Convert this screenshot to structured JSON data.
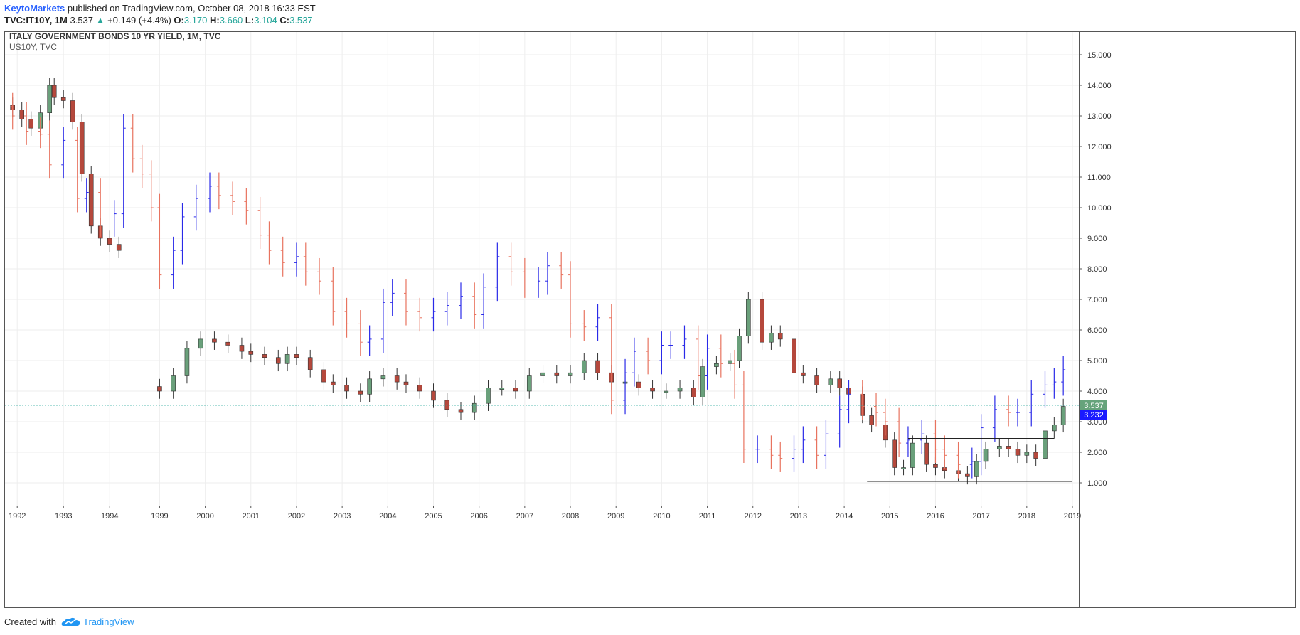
{
  "header": {
    "author": "KeytoMarkets",
    "published": "published on TradingView.com, October 08, 2018 16:33 EST",
    "symbol": "TVC:IT10Y, 1M",
    "last": "3.537",
    "change": "+0.149 (+4.4%)",
    "o_label": "O:",
    "o_value": "3.170",
    "h_label": "H:",
    "h_value": "3.660",
    "l_label": "L:",
    "l_value": "3.104",
    "c_label": "C:",
    "c_value": "3.537"
  },
  "footer": {
    "created_with": "Created with",
    "brand": "TradingView"
  },
  "chart_data": {
    "type": "line",
    "title": "ITALY GOVERNMENT BONDS 10 YR YIELD, 1M, TVC",
    "subtitle": "US10Y, TVC",
    "y_axis": {
      "ticks": [
        "15.000",
        "14.000",
        "13.000",
        "12.000",
        "11.000",
        "10.000",
        "9.000",
        "8.000",
        "7.000",
        "6.000",
        "5.000",
        "4.000",
        "3.000",
        "2.000",
        "1.000"
      ],
      "ylim": [
        0.2,
        15.4
      ],
      "position": "right"
    },
    "x_axis": {
      "ticks": [
        "1992",
        "1993",
        "1994",
        "1999",
        "2000",
        "2001",
        "2002",
        "2003",
        "2004",
        "2005",
        "2006",
        "2007",
        "2008",
        "2009",
        "2010",
        "2011",
        "2012",
        "2013",
        "2014",
        "2015",
        "2016",
        "2017",
        "2018",
        "2019"
      ]
    },
    "price_labels": [
      {
        "value": "3.232",
        "color": "#1a1aff"
      },
      {
        "value": "3.537",
        "color": "#66a37b"
      }
    ],
    "colors": {
      "up_candle": "#6aa07b",
      "down_candle": "#b5483c",
      "us10y_up": "#2a2ae8",
      "us10y_down": "#e8735f",
      "last_price_line": "#26a69a",
      "drawn_lines": "#222222"
    },
    "series": [
      {
        "name": "IT10Y",
        "style": "candles",
        "x": [
          "1991.9",
          "1992.1",
          "1992.3",
          "1992.5",
          "1992.7",
          "1992.8",
          "1993.0",
          "1993.2",
          "1993.4",
          "1993.6",
          "1993.8",
          "1994.0",
          "1994.2"
        ],
        "values": [
          13.2,
          12.9,
          12.6,
          13.1,
          14.0,
          13.6,
          13.5,
          12.8,
          11.1,
          9.4,
          9.0,
          8.8,
          8.6
        ]
      },
      {
        "name": "IT10Y",
        "style": "candles",
        "x": [
          "1999.0",
          "1999.3",
          "1999.6",
          "1999.9",
          "2000.2",
          "2000.5",
          "2000.8",
          "2001.0",
          "2001.3",
          "2001.6",
          "2001.8",
          "2002.0",
          "2002.3",
          "2002.6",
          "2002.8",
          "2003.1",
          "2003.4",
          "2003.6",
          "2003.9",
          "2004.2",
          "2004.4",
          "2004.7",
          "2005.0",
          "2005.3",
          "2005.6",
          "2005.9",
          "2006.2",
          "2006.5",
          "2006.8",
          "2007.1",
          "2007.4",
          "2007.7",
          "2008.0",
          "2008.3",
          "2008.6",
          "2008.9",
          "2009.2",
          "2009.5",
          "2009.8",
          "2010.1",
          "2010.4",
          "2010.7",
          "2010.9",
          "2011.2",
          "2011.5",
          "2011.7",
          "2011.9",
          "2012.2",
          "2012.4",
          "2012.6",
          "2012.9",
          "2013.1",
          "2013.4",
          "2013.7",
          "2013.9",
          "2014.1",
          "2014.4",
          "2014.6",
          "2014.9",
          "2015.1",
          "2015.3",
          "2015.5",
          "2015.8",
          "2016.0",
          "2016.2",
          "2016.5",
          "2016.7",
          "2016.9",
          "2017.1",
          "2017.4",
          "2017.6",
          "2017.8",
          "2018.0",
          "2018.2",
          "2018.4",
          "2018.6",
          "2018.8"
        ],
        "values": [
          4.0,
          4.5,
          5.4,
          5.7,
          5.6,
          5.5,
          5.3,
          5.2,
          5.1,
          4.9,
          5.2,
          5.1,
          4.7,
          4.3,
          4.2,
          4.0,
          3.9,
          4.4,
          4.5,
          4.3,
          4.2,
          4.0,
          3.7,
          3.4,
          3.3,
          3.6,
          4.1,
          4.1,
          4.0,
          4.5,
          4.6,
          4.5,
          4.6,
          5.0,
          4.6,
          4.3,
          4.3,
          4.1,
          4.0,
          4.0,
          4.1,
          3.8,
          4.8,
          4.9,
          5.0,
          5.8,
          7.0,
          5.6,
          5.9,
          5.7,
          4.6,
          4.5,
          4.2,
          4.4,
          4.1,
          3.9,
          3.2,
          2.9,
          2.4,
          1.5,
          1.5,
          2.3,
          1.6,
          1.5,
          1.4,
          1.3,
          1.2,
          1.7,
          2.1,
          2.2,
          2.1,
          1.9,
          2.0,
          1.8,
          2.7,
          2.9,
          3.5
        ]
      },
      {
        "name": "US10Y",
        "style": "ohlc",
        "x": [
          "1991.9",
          "1992.2",
          "1992.5",
          "1992.7",
          "1993.0",
          "1993.3",
          "1993.5",
          "1993.8",
          "1994.1",
          "1994.3",
          "1994.5",
          "1994.7",
          "1994.9",
          "1999.0",
          "1999.3",
          "1999.5",
          "1999.8",
          "2000.1",
          "2000.3",
          "2000.6",
          "2000.9",
          "2001.2",
          "2001.4",
          "2001.7",
          "2002.0",
          "2002.2",
          "2002.5",
          "2002.8",
          "2003.1",
          "2003.4",
          "2003.6",
          "2003.9",
          "2004.1",
          "2004.4",
          "2004.7",
          "2005.0",
          "2005.3",
          "2005.6",
          "2005.9",
          "2006.1",
          "2006.4",
          "2006.7",
          "2007.0",
          "2007.3",
          "2007.5",
          "2007.8",
          "2008.0",
          "2008.3",
          "2008.6",
          "2008.9",
          "2009.2",
          "2009.4",
          "2009.7",
          "2010.0",
          "2010.2",
          "2010.5",
          "2010.8",
          "2011.0",
          "2011.3",
          "2011.6",
          "2011.8",
          "2012.1",
          "2012.4",
          "2012.6",
          "2012.9",
          "2013.1",
          "2013.4",
          "2013.6",
          "2013.9",
          "2014.1",
          "2014.4",
          "2014.7",
          "2014.9",
          "2015.2",
          "2015.4",
          "2015.7",
          "2016.0",
          "2016.2",
          "2016.5",
          "2016.8",
          "2017.0",
          "2017.3",
          "2017.6",
          "2017.8",
          "2018.1",
          "2018.4",
          "2018.6",
          "2018.8"
        ],
        "values": [
          13.0,
          12.5,
          12.4,
          11.4,
          12.2,
          10.3,
          10.5,
          9.5,
          9.8,
          12.6,
          11.6,
          11.1,
          10.0,
          7.8,
          8.6,
          9.7,
          10.3,
          10.7,
          10.4,
          10.2,
          9.9,
          9.1,
          8.6,
          8.2,
          8.4,
          7.9,
          7.6,
          6.6,
          6.2,
          5.6,
          5.7,
          6.9,
          7.2,
          6.6,
          6.4,
          6.6,
          6.8,
          7.1,
          6.5,
          7.4,
          8.4,
          7.9,
          7.5,
          7.6,
          8.1,
          7.8,
          6.2,
          6.1,
          6.4,
          3.7,
          4.6,
          5.3,
          5.0,
          5.5,
          5.5,
          5.7,
          4.5,
          5.4,
          4.9,
          4.2,
          2.1,
          2.1,
          1.9,
          1.8,
          2.1,
          2.4,
          1.9,
          2.6,
          3.4,
          3.9,
          3.5,
          3.3,
          3.0,
          2.3,
          2.4,
          2.6,
          2.1,
          1.9,
          1.6,
          1.7,
          2.8,
          3.4,
          3.3,
          3.3,
          3.9,
          4.2,
          4.3,
          4.7
        ]
      }
    ],
    "drawn_lines": [
      {
        "x": [
          "2014.5",
          "2019.0"
        ],
        "y": [
          1.05,
          1.05
        ]
      },
      {
        "x": [
          "2015.4",
          "2018.6"
        ],
        "y": [
          2.45,
          2.45
        ]
      }
    ],
    "last_price": 3.537,
    "grid": true,
    "legend": "top-left"
  }
}
